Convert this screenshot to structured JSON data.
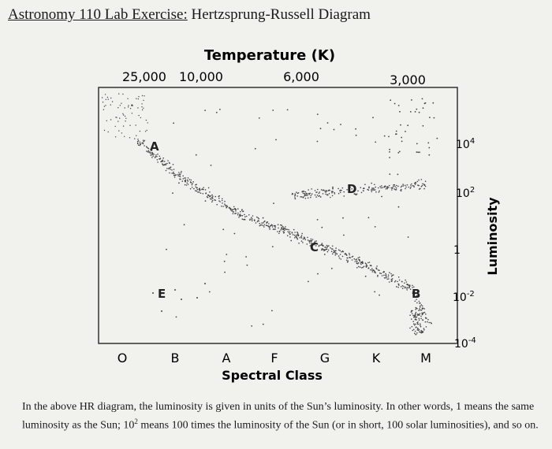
{
  "header": {
    "title_underlined": "Astronomy 110 Lab Exercise:",
    "title_rest": " Hertzsprung-Russell Diagram"
  },
  "figure": {
    "top_axis_title": "Temperature (K)",
    "top_ticks": [
      "25,000",
      "10,000",
      "6,000",
      "3,000"
    ],
    "bottom_axis_title": "Spectral Class",
    "spectral_classes": [
      "O",
      "B",
      "A",
      "F",
      "G",
      "K",
      "M"
    ],
    "right_axis_title": "Luminosity",
    "luminosity_ticks": [
      {
        "base": "10",
        "exp": "4"
      },
      {
        "base": "10",
        "exp": "2"
      },
      {
        "base": "1",
        "exp": ""
      },
      {
        "base": "10",
        "exp": "-2"
      },
      {
        "base": "10",
        "exp": "-4"
      }
    ],
    "point_labels": [
      "A",
      "D",
      "C",
      "B",
      "E"
    ]
  },
  "caption": {
    "part1": "In the above HR diagram, the luminosity is given in units of the Sun’s luminosity. In other words, 1 means the same luminosity as the Sun; 10",
    "sup": "2",
    "part2": " means 100 times the luminosity of the Sun (or in short, 100 solar luminosities), and so on."
  }
}
